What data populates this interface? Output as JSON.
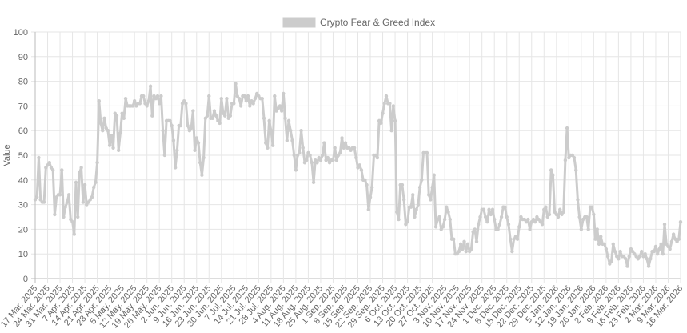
{
  "chart_data": {
    "type": "line",
    "legend": {
      "label": "Crypto Fear & Greed Index",
      "placement": "top"
    },
    "ylabel": "Value",
    "xlabel": "",
    "ylim": [
      0,
      100
    ],
    "y_ticks": [
      "0",
      "10",
      "20",
      "30",
      "40",
      "50",
      "60",
      "70",
      "80",
      "90",
      "100"
    ],
    "grid": true,
    "colors": {
      "line": "#cccccc",
      "grid": "#e6e6e6",
      "axis": "#666666"
    },
    "x_tick_labels": [
      "17 Mar. 2025",
      "24 Mar. 2025",
      "31 Mar. 2025",
      "7 Apr. 2025",
      "14 Apr. 2025",
      "21 Apr. 2025",
      "28 Apr. 2025",
      "5 May. 2025",
      "12 May. 2025",
      "19 May. 2025",
      "26 May. 2025",
      "2 Jun. 2025",
      "9 Jun. 2025",
      "16 Jun. 2025",
      "23 Jun. 2025",
      "30 Jun. 2025",
      "7 Jul. 2025",
      "14 Jul. 2025",
      "21 Jul. 2025",
      "28 Jul. 2025",
      "4 Aug. 2025",
      "11 Aug. 2025",
      "18 Aug. 2025",
      "25 Aug. 2025",
      "1 Sep. 2025",
      "8 Sep. 2025",
      "15 Sep. 2025",
      "22 Sep. 2025",
      "29 Sep. 2025",
      "6 Oct. 2025",
      "13 Oct. 2025",
      "20 Oct. 2025",
      "27 Oct. 2025",
      "3 Nov. 2025",
      "10 Nov. 2025",
      "17 Nov. 2025",
      "24 Nov. 2025",
      "1 Dec. 2025",
      "8 Dec. 2025",
      "15 Dec. 2025",
      "22 Dec. 2025",
      "29 Dec. 2025",
      "5 Jan. 2026",
      "12 Jan. 2026",
      "19 Jan. 2026",
      "26 Jan. 2026",
      "2 Feb. 2026",
      "9 Feb. 2026",
      "16 Feb. 2026",
      "23 Feb. 2026",
      "2 Mar. 2026",
      "9 Mar. 2026",
      "16 Mar. 2026"
    ],
    "values": [
      32,
      33,
      49,
      32,
      31,
      31,
      45,
      46,
      47,
      45,
      44,
      26,
      33,
      34,
      34,
      44,
      25,
      29,
      31,
      34,
      24,
      23,
      18,
      39,
      25,
      43,
      45,
      31,
      38,
      30,
      31,
      32,
      33,
      37,
      39,
      47,
      72,
      63,
      60,
      65,
      61,
      60,
      54,
      58,
      53,
      67,
      66,
      52,
      59,
      67,
      65,
      73,
      70,
      70,
      70,
      70,
      72,
      70,
      71,
      71,
      74,
      74,
      71,
      70,
      72,
      78,
      66,
      74,
      73,
      74,
      71,
      74,
      60,
      50,
      64,
      64,
      64,
      62,
      56,
      45,
      52,
      62,
      62,
      71,
      72,
      71,
      62,
      60,
      61,
      68,
      52,
      57,
      55,
      47,
      42,
      49,
      65,
      66,
      74,
      65,
      65,
      68,
      66,
      64,
      63,
      73,
      67,
      66,
      73,
      65,
      66,
      71,
      71,
      79,
      74,
      73,
      70,
      74,
      74,
      72,
      74,
      70,
      72,
      71,
      73,
      75,
      74,
      73,
      73,
      65,
      55,
      53,
      64,
      60,
      54,
      74,
      68,
      69,
      70,
      68,
      75,
      65,
      56,
      64,
      60,
      56,
      50,
      44,
      50,
      51,
      60,
      53,
      47,
      48,
      51,
      50,
      47,
      39,
      48,
      47,
      49,
      48,
      50,
      55,
      48,
      49,
      47,
      48,
      48,
      53,
      48,
      50,
      51,
      57,
      53,
      55,
      53,
      53,
      52,
      53,
      53,
      49,
      45,
      46,
      44,
      40,
      40,
      38,
      28,
      33,
      37,
      50,
      50,
      49,
      64,
      63,
      67,
      71,
      74,
      71,
      71,
      60,
      70,
      64,
      27,
      24,
      38,
      38,
      32,
      22,
      23,
      29,
      29,
      34,
      25,
      28,
      30,
      37,
      40,
      51,
      51,
      51,
      34,
      32,
      37,
      42,
      21,
      24,
      25,
      20,
      21,
      24,
      29,
      27,
      24,
      16,
      16,
      10,
      10,
      11,
      14,
      12,
      15,
      11,
      14,
      11,
      12,
      19,
      20,
      15,
      22,
      25,
      28,
      28,
      25,
      23,
      28,
      26,
      28,
      24,
      20,
      20,
      22,
      25,
      29,
      29,
      25,
      22,
      16,
      11,
      16,
      17,
      16,
      21,
      25,
      24,
      24,
      23,
      24,
      20,
      23,
      24,
      23,
      25,
      24,
      23,
      22,
      28,
      29,
      25,
      26,
      44,
      42,
      27,
      26,
      25,
      28,
      26,
      27,
      48,
      61,
      49,
      50,
      50,
      49,
      44,
      32,
      25,
      20,
      24,
      25,
      25,
      20,
      29,
      29,
      26,
      16,
      20,
      14,
      17,
      14,
      14,
      12,
      9,
      6,
      7,
      14,
      11,
      9,
      8,
      11,
      9,
      9,
      8,
      5,
      9,
      12,
      11,
      10,
      9,
      8,
      9,
      11,
      9,
      10,
      8,
      5,
      8,
      11,
      11,
      13,
      10,
      12,
      14,
      10,
      22,
      14,
      13,
      12,
      15,
      18,
      16,
      15,
      16,
      23
    ]
  }
}
